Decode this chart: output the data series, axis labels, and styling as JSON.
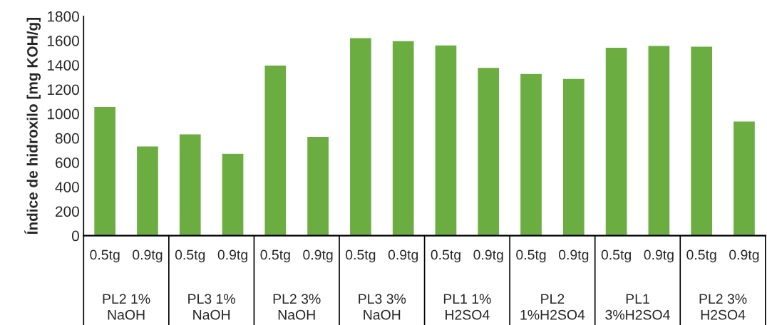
{
  "chart_data": {
    "type": "bar",
    "ylabel": "Índice de hidroxilo [mg KOH/g]",
    "categories": [
      "0.5tg",
      "0.9tg",
      "0.5tg",
      "0.9tg",
      "0.5tg",
      "0.9tg",
      "0.5tg",
      "0.9tg",
      "0.5tg",
      "0.9tg",
      "0.5tg",
      "0.9tg",
      "0.5tg",
      "0.9tg",
      "0.5tg",
      "0.9tg"
    ],
    "values": [
      1060,
      735,
      835,
      675,
      1400,
      815,
      1625,
      1600,
      1565,
      1380,
      1330,
      1290,
      1545,
      1560,
      1555,
      940
    ],
    "color": "#6cad42",
    "ylim": [
      0,
      1800
    ],
    "yticks": [
      0,
      200,
      400,
      600,
      800,
      1000,
      1200,
      1400,
      1600,
      1800
    ],
    "grid": false,
    "annotations": [
      "PL2 1% NaOH",
      "PL3 1% NaOH",
      "PL2 3% NaOH",
      "PL3 3% NaOH",
      "PL1 1% H2SO4",
      "PL2 1%H2SO4",
      "PL1 3%H2SO4",
      "PL2 3% H2SO4"
    ]
  }
}
